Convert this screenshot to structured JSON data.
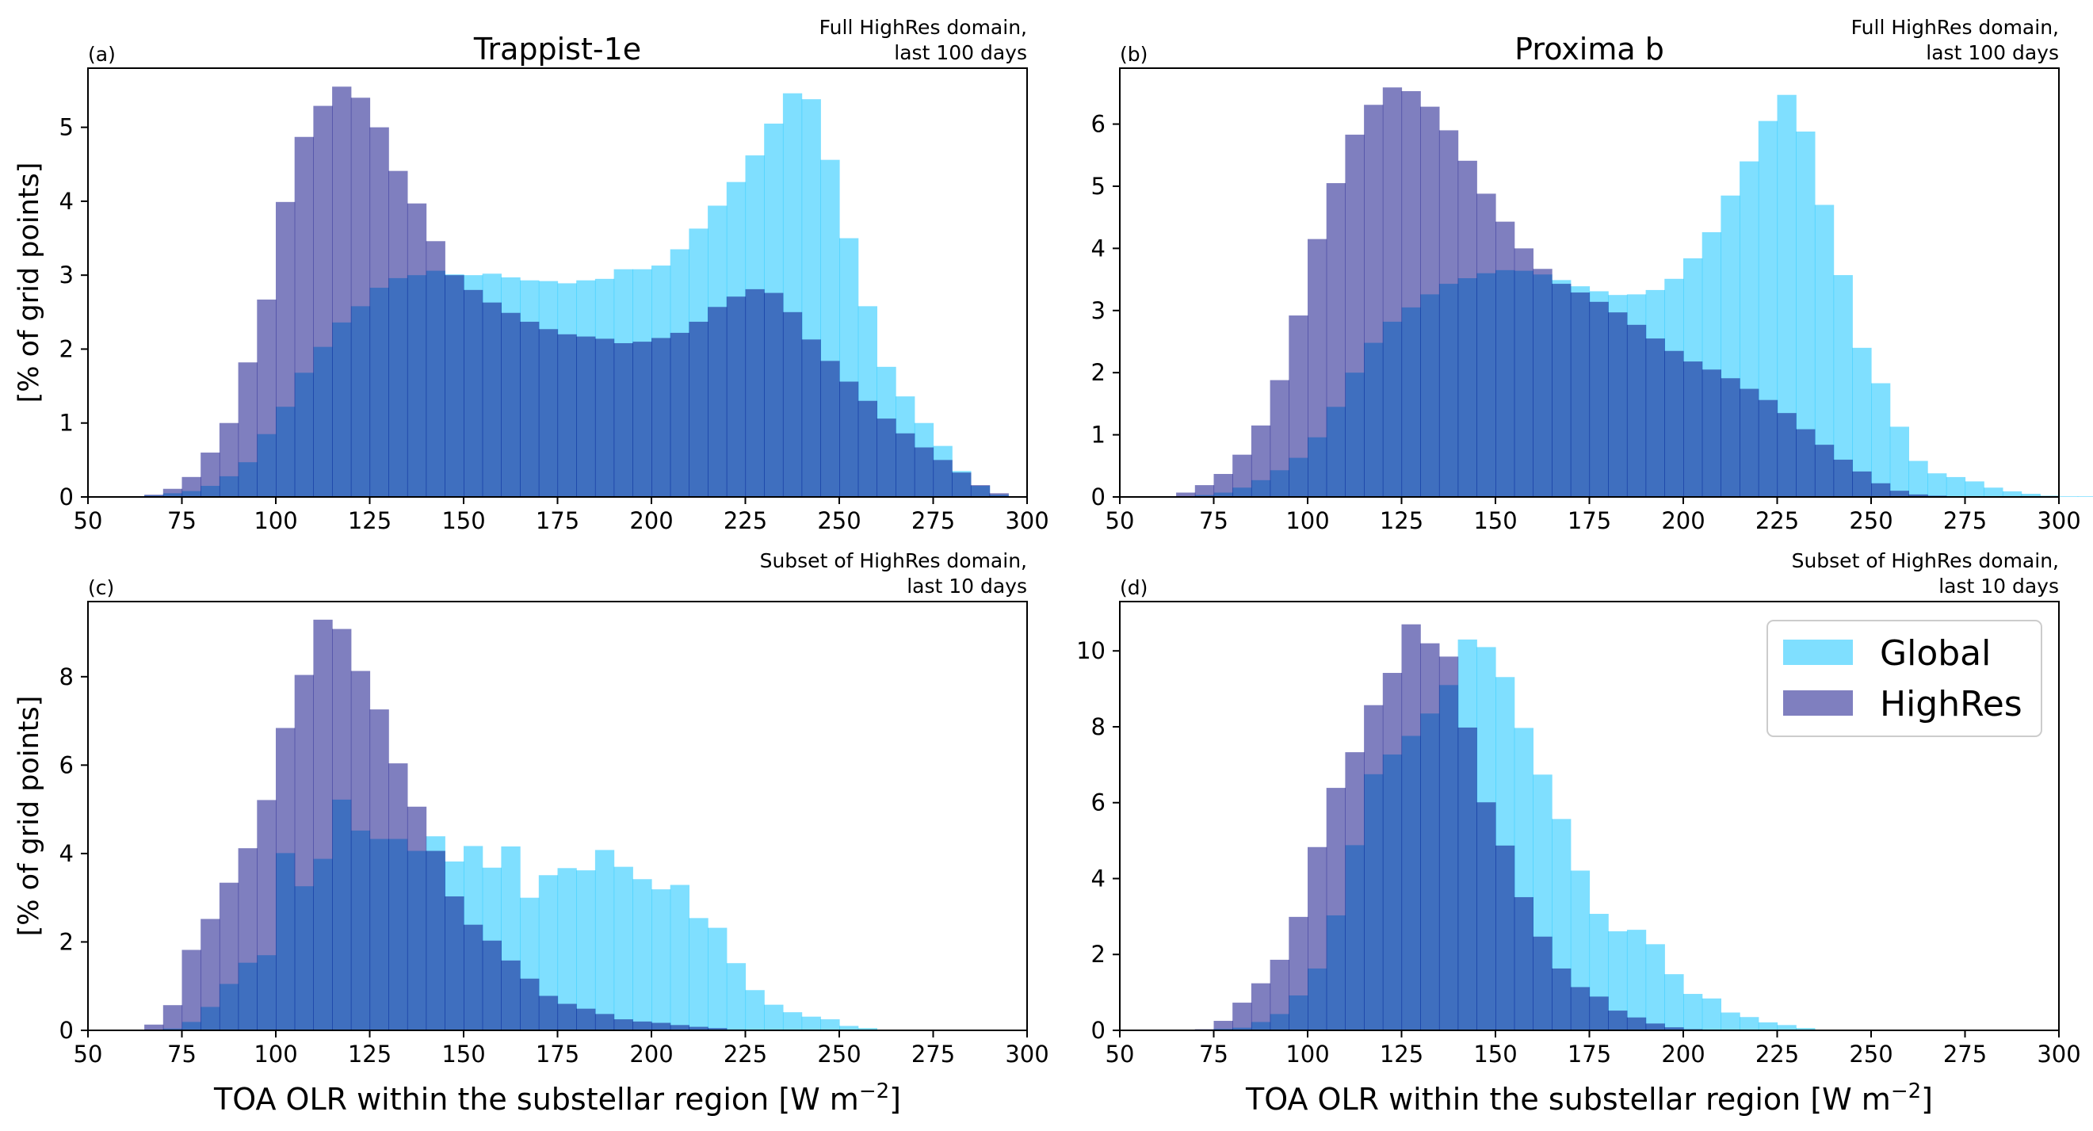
{
  "colors": {
    "global": "#00bfff",
    "global_alpha": 0.5,
    "highres": "#000080",
    "highres_alpha": 0.5
  },
  "legend": {
    "location": "upper right",
    "panel": "d",
    "items": [
      "Global",
      "HighRes"
    ]
  },
  "chart_data": [
    {
      "id": "a",
      "type": "bar",
      "letter": "(a)",
      "title": "Trappist-1e",
      "note": [
        "Full HighRes domain,",
        "last 100 days"
      ],
      "xlabel": "",
      "ylabel": "[% of grid points]",
      "xlim": [
        50,
        300
      ],
      "ylim": [
        0,
        5.8
      ],
      "xticks": [
        50,
        75,
        100,
        125,
        150,
        175,
        200,
        225,
        250,
        275,
        300
      ],
      "yticks": [
        0,
        1,
        2,
        3,
        4,
        5
      ],
      "bin_width": 5,
      "bin_start": 60,
      "series": [
        {
          "name": "Global",
          "values": [
            0,
            0.02,
            0.05,
            0.08,
            0.15,
            0.28,
            0.47,
            0.85,
            1.22,
            1.68,
            2.03,
            2.36,
            2.58,
            2.83,
            2.96,
            3.0,
            3.06,
            3.01,
            3.0,
            3.02,
            2.97,
            2.93,
            2.92,
            2.89,
            2.93,
            2.95,
            3.08,
            3.08,
            3.13,
            3.35,
            3.63,
            3.94,
            4.26,
            4.62,
            5.05,
            5.46,
            5.38,
            4.56,
            3.5,
            2.58,
            1.76,
            1.36,
            1.0,
            0.69,
            0.35,
            0.15,
            0.03,
            0.01,
            0
          ]
        },
        {
          "name": "HighRes",
          "values": [
            0.01,
            0.03,
            0.11,
            0.27,
            0.6,
            1.0,
            1.82,
            2.67,
            3.99,
            4.87,
            5.29,
            5.55,
            5.4,
            5.0,
            4.41,
            3.97,
            3.46,
            3.0,
            2.8,
            2.63,
            2.49,
            2.37,
            2.27,
            2.2,
            2.17,
            2.14,
            2.08,
            2.1,
            2.15,
            2.22,
            2.37,
            2.57,
            2.71,
            2.81,
            2.76,
            2.5,
            2.13,
            1.84,
            1.56,
            1.3,
            1.06,
            0.86,
            0.67,
            0.5,
            0.33,
            0.16,
            0.05,
            0.01,
            0
          ]
        }
      ]
    },
    {
      "id": "b",
      "type": "bar",
      "letter": "(b)",
      "title": "Proxima b",
      "note": [
        "Full HighRes domain,",
        "last 100 days"
      ],
      "xlabel": "",
      "ylabel": "",
      "xlim": [
        50,
        300
      ],
      "ylim": [
        0,
        6.9
      ],
      "xticks": [
        50,
        75,
        100,
        125,
        150,
        175,
        200,
        225,
        250,
        275,
        300
      ],
      "yticks": [
        0,
        1,
        2,
        3,
        4,
        5,
        6
      ],
      "bin_width": 5,
      "bin_start": 60,
      "series": [
        {
          "name": "Global",
          "values": [
            0,
            0.01,
            0.03,
            0.07,
            0.15,
            0.27,
            0.43,
            0.63,
            0.96,
            1.45,
            2.0,
            2.48,
            2.82,
            3.05,
            3.26,
            3.43,
            3.52,
            3.6,
            3.65,
            3.64,
            3.58,
            3.49,
            3.39,
            3.31,
            3.25,
            3.26,
            3.33,
            3.51,
            3.84,
            4.26,
            4.85,
            5.4,
            6.05,
            6.47,
            5.88,
            4.7,
            3.57,
            2.4,
            1.83,
            1.13,
            0.58,
            0.38,
            0.32,
            0.25,
            0.15,
            0.09,
            0.05,
            0.02,
            0.01,
            0.01
          ]
        },
        {
          "name": "HighRes",
          "values": [
            0,
            0.07,
            0.19,
            0.37,
            0.68,
            1.15,
            1.88,
            2.92,
            4.15,
            5.05,
            5.83,
            6.31,
            6.59,
            6.53,
            6.28,
            5.9,
            5.41,
            4.88,
            4.43,
            4.0,
            3.67,
            3.43,
            3.29,
            3.14,
            2.97,
            2.77,
            2.55,
            2.35,
            2.18,
            2.05,
            1.91,
            1.74,
            1.56,
            1.35,
            1.09,
            0.84,
            0.6,
            0.41,
            0.22,
            0.1,
            0.04,
            0.02,
            0.01,
            0,
            0,
            0,
            0,
            0,
            0,
            0
          ]
        }
      ]
    },
    {
      "id": "c",
      "type": "bar",
      "letter": "(c)",
      "title": "",
      "note": [
        "Subset of HighRes domain,",
        "last 10 days"
      ],
      "xlabel": "TOA OLR within the substellar region [W m",
      "xlabel_sup": "−2",
      "xlabel_end": "]",
      "ylabel": "[% of grid points]",
      "xlim": [
        50,
        300
      ],
      "ylim": [
        0,
        9.7
      ],
      "xticks": [
        50,
        75,
        100,
        125,
        150,
        175,
        200,
        225,
        250,
        275,
        300
      ],
      "yticks": [
        0,
        2,
        4,
        6,
        8
      ],
      "bin_width": 5,
      "bin_start": 55,
      "series": [
        {
          "name": "Global",
          "values": [
            0,
            0,
            0,
            0.04,
            0.19,
            0.53,
            1.05,
            1.53,
            1.7,
            4.01,
            3.26,
            3.88,
            5.22,
            4.52,
            4.33,
            4.33,
            4.06,
            4.39,
            3.82,
            4.17,
            3.68,
            4.16,
            3.0,
            3.51,
            3.67,
            3.62,
            4.08,
            3.7,
            3.42,
            3.19,
            3.29,
            2.54,
            2.32,
            1.52,
            0.91,
            0.58,
            0.41,
            0.31,
            0.25,
            0.1,
            0.05,
            0,
            0,
            0,
            0,
            0,
            0,
            0,
            0
          ]
        },
        {
          "name": "HighRes",
          "values": [
            0,
            0,
            0.13,
            0.57,
            1.82,
            2.52,
            3.34,
            4.12,
            5.21,
            6.84,
            8.04,
            9.29,
            9.08,
            8.13,
            7.26,
            6.04,
            5.06,
            4.06,
            3.03,
            2.39,
            2.03,
            1.58,
            1.17,
            0.78,
            0.6,
            0.49,
            0.37,
            0.25,
            0.2,
            0.17,
            0.12,
            0.08,
            0.05,
            0.02,
            0.01,
            0,
            0,
            0,
            0,
            0,
            0,
            0,
            0,
            0,
            0,
            0,
            0,
            0,
            0
          ]
        }
      ]
    },
    {
      "id": "d",
      "type": "bar",
      "letter": "(d)",
      "title": "",
      "note": [
        "Subset of HighRes domain,",
        "last 10 days"
      ],
      "xlabel": "TOA OLR within the substellar region [W m",
      "xlabel_sup": "−2",
      "xlabel_end": "]",
      "ylabel": "",
      "xlim": [
        50,
        300
      ],
      "ylim": [
        0,
        11.3
      ],
      "xticks": [
        50,
        75,
        100,
        125,
        150,
        175,
        200,
        225,
        250,
        275,
        300
      ],
      "yticks": [
        0,
        2,
        4,
        6,
        8,
        10
      ],
      "bin_width": 5,
      "bin_start": 60,
      "series": [
        {
          "name": "Global",
          "values": [
            0,
            0,
            0,
            0.04,
            0.07,
            0.22,
            0.43,
            0.92,
            1.63,
            3.03,
            4.88,
            6.75,
            7.27,
            7.76,
            8.35,
            9.1,
            10.3,
            10.1,
            9.31,
            7.97,
            6.74,
            5.57,
            4.21,
            3.07,
            2.61,
            2.65,
            2.27,
            1.48,
            0.96,
            0.84,
            0.47,
            0.35,
            0.21,
            0.14,
            0.06,
            0.02,
            0.01,
            0,
            0,
            0,
            0,
            0,
            0,
            0,
            0,
            0,
            0,
            0,
            0
          ]
        },
        {
          "name": "HighRes",
          "values": [
            0,
            0,
            0.03,
            0.25,
            0.73,
            1.24,
            1.86,
            2.99,
            4.83,
            6.39,
            7.33,
            8.57,
            9.42,
            10.7,
            10.2,
            9.85,
            7.98,
            6.01,
            4.87,
            3.51,
            2.47,
            1.63,
            1.14,
            0.89,
            0.52,
            0.34,
            0.18,
            0.08,
            0.03,
            0.01,
            0,
            0,
            0,
            0,
            0,
            0,
            0,
            0,
            0,
            0,
            0,
            0,
            0,
            0,
            0,
            0,
            0,
            0,
            0
          ]
        }
      ]
    }
  ]
}
